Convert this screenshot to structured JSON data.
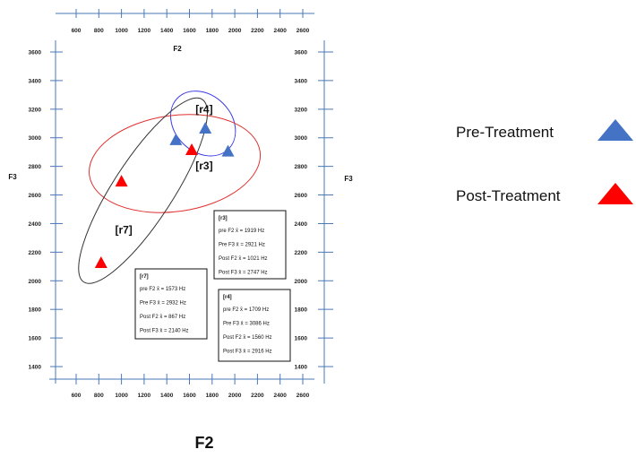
{
  "chart_data": {
    "type": "scatter",
    "xlabel": "F2",
    "ylabel": "F3",
    "bottom_title": "F2",
    "x_ticks": [
      600,
      800,
      1000,
      1200,
      1400,
      1600,
      1800,
      2000,
      2200,
      2400,
      2600
    ],
    "y_ticks": [
      1400,
      1600,
      1800,
      2000,
      2200,
      2400,
      2600,
      2800,
      3000,
      3200,
      3400,
      3600
    ],
    "xlim": [
      500,
      2700
    ],
    "ylim": [
      1350,
      3650
    ],
    "series": [
      {
        "name": "Pre-Treatment",
        "color": "#4472c4",
        "marker": "triangle",
        "points": [
          {
            "x": 1480,
            "y": 2990
          },
          {
            "x": 1740,
            "y": 3070
          },
          {
            "x": 1940,
            "y": 2910
          }
        ]
      },
      {
        "name": "Post-Treatment",
        "color": "#ff0000",
        "marker": "triangle",
        "points": [
          {
            "x": 820,
            "y": 2130
          },
          {
            "x": 1000,
            "y": 2700
          },
          {
            "x": 1620,
            "y": 2920
          }
        ]
      }
    ],
    "ellipses": [
      {
        "label": "[r4]",
        "color": "#3b3be6",
        "cx": 1720,
        "cy": 3100,
        "rx": 250,
        "ry": 60,
        "angle": -45
      },
      {
        "label": "[r3]",
        "color": "#e03030",
        "cx": 1470,
        "cy": 2820,
        "rx": 760,
        "ry": 80,
        "angle": -8
      },
      {
        "label": "[r7]",
        "color": "#333333",
        "cx": 1190,
        "cy": 2630,
        "rx": 960,
        "ry": 50,
        "angle": -57
      }
    ],
    "label_positions": [
      {
        "text": "[r4]",
        "x": 1730,
        "y": 3175
      },
      {
        "text": "[r3]",
        "x": 1730,
        "y": 2780
      },
      {
        "text": "[r7]",
        "x": 1020,
        "y": 2330
      }
    ],
    "boxes": [
      {
        "title": "[r3]",
        "lines": [
          "pre F2 x̄ = 1919 Hz",
          "Pre F3 x̄ = 2921 Hz",
          "Post F2 x̄ = 1021 Hz",
          "Post F3 x̄ = 2747 Hz"
        ]
      },
      {
        "title": "[r7]",
        "lines": [
          "pre F2 x̄ = 1573 Hz",
          "Pre F3 x̄ = 2932 Hz",
          "Post F2 x̄ = 867 Hz",
          "Post F3 x̄ = 2140 Hz"
        ]
      },
      {
        "title": "[r4]",
        "lines": [
          "pre F2 x̄ = 1709 Hz",
          "Pre F3 x̄ = 3086 Hz",
          "Post F2 x̄ = 1560 Hz",
          "Post F3 x̄ = 2916 Hz"
        ]
      }
    ],
    "legend": [
      {
        "label": "Pre-Treatment",
        "color": "#4472c4"
      },
      {
        "label": "Post-Treatment",
        "color": "#ff0000"
      }
    ],
    "grid": false,
    "legend_placement": "right"
  }
}
